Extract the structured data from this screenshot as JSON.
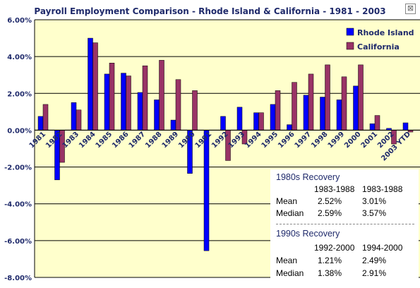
{
  "window": {
    "close_glyph": "⊠"
  },
  "chart_data": {
    "type": "bar",
    "title": "Payroll Employment Comparison - Rhode Island & California - 1981 - 2003",
    "xlabel": "",
    "ylabel": "",
    "categories": [
      "1981",
      "1982",
      "1983",
      "1984",
      "1985",
      "1986",
      "1987",
      "1988",
      "1989",
      "1990",
      "1991",
      "1992",
      "1993",
      "1994",
      "1995",
      "1996",
      "1997",
      "1998",
      "1999",
      "2000",
      "2001",
      "2002",
      "2003 YTD"
    ],
    "series": [
      {
        "name": "Rhode Island",
        "color": "#0000ff",
        "values": [
          0.75,
          -2.7,
          1.5,
          5.0,
          3.05,
          3.1,
          2.05,
          1.65,
          0.55,
          -2.35,
          -6.55,
          0.75,
          1.25,
          0.95,
          1.4,
          0.3,
          1.9,
          1.8,
          1.65,
          2.4,
          0.35,
          0.1,
          0.4
        ]
      },
      {
        "name": "California",
        "color": "#993366",
        "values": [
          1.4,
          -1.75,
          1.1,
          4.75,
          3.65,
          2.95,
          3.5,
          3.8,
          2.75,
          2.15,
          0.0,
          -1.65,
          -0.75,
          0.95,
          2.15,
          2.6,
          3.05,
          3.55,
          2.9,
          3.55,
          0.8,
          -0.75,
          -0.1
        ]
      }
    ],
    "ylim": [
      -8,
      6
    ],
    "yticks": [
      "-8.00%",
      "-6.00%",
      "-4.00%",
      "-2.00%",
      "0.00%",
      "2.00%",
      "4.00%",
      "6.00%"
    ],
    "ytick_values": [
      -8,
      -6,
      -4,
      -2,
      0,
      2,
      4,
      6
    ],
    "grid": true,
    "legend_position": "top-right",
    "plot_background": "#ffffcc"
  },
  "stats": {
    "r80": {
      "title": "1980s Recovery",
      "col1": "1983-1988",
      "col2": "1983-1988",
      "rows": [
        {
          "label": "Mean",
          "v1": "2.52%",
          "v2": "3.01%"
        },
        {
          "label": "Median",
          "v1": "2.59%",
          "v2": "3.57%"
        }
      ]
    },
    "r90": {
      "title": "1990s Recovery",
      "col1": "1992-2000",
      "col2": "1994-2000",
      "rows": [
        {
          "label": "Mean",
          "v1": "1.21%",
          "v2": "2.49%"
        },
        {
          "label": "Median",
          "v1": "1.38%",
          "v2": "2.91%"
        }
      ]
    }
  }
}
